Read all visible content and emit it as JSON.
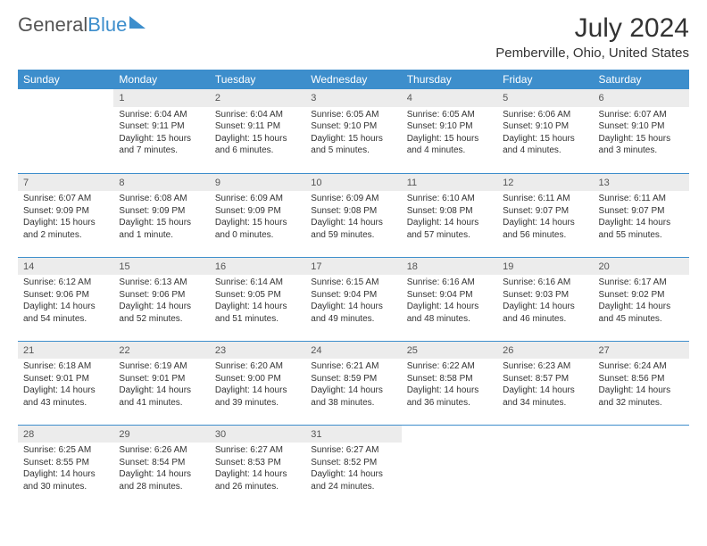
{
  "logo": {
    "text1": "General",
    "text2": "Blue"
  },
  "title": "July 2024",
  "subtitle": "Pemberville, Ohio, United States",
  "colors": {
    "header_bg": "#3d8ecc",
    "header_text": "#ffffff",
    "daynum_bg": "#ececec",
    "daynum_text": "#555555",
    "row_divider": "#3d8ecc",
    "body_text": "#333333",
    "background": "#ffffff"
  },
  "weekdays": [
    "Sunday",
    "Monday",
    "Tuesday",
    "Wednesday",
    "Thursday",
    "Friday",
    "Saturday"
  ],
  "weeks": [
    [
      null,
      {
        "n": "1",
        "sr": "Sunrise: 6:04 AM",
        "ss": "Sunset: 9:11 PM",
        "dl": "Daylight: 15 hours and 7 minutes."
      },
      {
        "n": "2",
        "sr": "Sunrise: 6:04 AM",
        "ss": "Sunset: 9:11 PM",
        "dl": "Daylight: 15 hours and 6 minutes."
      },
      {
        "n": "3",
        "sr": "Sunrise: 6:05 AM",
        "ss": "Sunset: 9:10 PM",
        "dl": "Daylight: 15 hours and 5 minutes."
      },
      {
        "n": "4",
        "sr": "Sunrise: 6:05 AM",
        "ss": "Sunset: 9:10 PM",
        "dl": "Daylight: 15 hours and 4 minutes."
      },
      {
        "n": "5",
        "sr": "Sunrise: 6:06 AM",
        "ss": "Sunset: 9:10 PM",
        "dl": "Daylight: 15 hours and 4 minutes."
      },
      {
        "n": "6",
        "sr": "Sunrise: 6:07 AM",
        "ss": "Sunset: 9:10 PM",
        "dl": "Daylight: 15 hours and 3 minutes."
      }
    ],
    [
      {
        "n": "7",
        "sr": "Sunrise: 6:07 AM",
        "ss": "Sunset: 9:09 PM",
        "dl": "Daylight: 15 hours and 2 minutes."
      },
      {
        "n": "8",
        "sr": "Sunrise: 6:08 AM",
        "ss": "Sunset: 9:09 PM",
        "dl": "Daylight: 15 hours and 1 minute."
      },
      {
        "n": "9",
        "sr": "Sunrise: 6:09 AM",
        "ss": "Sunset: 9:09 PM",
        "dl": "Daylight: 15 hours and 0 minutes."
      },
      {
        "n": "10",
        "sr": "Sunrise: 6:09 AM",
        "ss": "Sunset: 9:08 PM",
        "dl": "Daylight: 14 hours and 59 minutes."
      },
      {
        "n": "11",
        "sr": "Sunrise: 6:10 AM",
        "ss": "Sunset: 9:08 PM",
        "dl": "Daylight: 14 hours and 57 minutes."
      },
      {
        "n": "12",
        "sr": "Sunrise: 6:11 AM",
        "ss": "Sunset: 9:07 PM",
        "dl": "Daylight: 14 hours and 56 minutes."
      },
      {
        "n": "13",
        "sr": "Sunrise: 6:11 AM",
        "ss": "Sunset: 9:07 PM",
        "dl": "Daylight: 14 hours and 55 minutes."
      }
    ],
    [
      {
        "n": "14",
        "sr": "Sunrise: 6:12 AM",
        "ss": "Sunset: 9:06 PM",
        "dl": "Daylight: 14 hours and 54 minutes."
      },
      {
        "n": "15",
        "sr": "Sunrise: 6:13 AM",
        "ss": "Sunset: 9:06 PM",
        "dl": "Daylight: 14 hours and 52 minutes."
      },
      {
        "n": "16",
        "sr": "Sunrise: 6:14 AM",
        "ss": "Sunset: 9:05 PM",
        "dl": "Daylight: 14 hours and 51 minutes."
      },
      {
        "n": "17",
        "sr": "Sunrise: 6:15 AM",
        "ss": "Sunset: 9:04 PM",
        "dl": "Daylight: 14 hours and 49 minutes."
      },
      {
        "n": "18",
        "sr": "Sunrise: 6:16 AM",
        "ss": "Sunset: 9:04 PM",
        "dl": "Daylight: 14 hours and 48 minutes."
      },
      {
        "n": "19",
        "sr": "Sunrise: 6:16 AM",
        "ss": "Sunset: 9:03 PM",
        "dl": "Daylight: 14 hours and 46 minutes."
      },
      {
        "n": "20",
        "sr": "Sunrise: 6:17 AM",
        "ss": "Sunset: 9:02 PM",
        "dl": "Daylight: 14 hours and 45 minutes."
      }
    ],
    [
      {
        "n": "21",
        "sr": "Sunrise: 6:18 AM",
        "ss": "Sunset: 9:01 PM",
        "dl": "Daylight: 14 hours and 43 minutes."
      },
      {
        "n": "22",
        "sr": "Sunrise: 6:19 AM",
        "ss": "Sunset: 9:01 PM",
        "dl": "Daylight: 14 hours and 41 minutes."
      },
      {
        "n": "23",
        "sr": "Sunrise: 6:20 AM",
        "ss": "Sunset: 9:00 PM",
        "dl": "Daylight: 14 hours and 39 minutes."
      },
      {
        "n": "24",
        "sr": "Sunrise: 6:21 AM",
        "ss": "Sunset: 8:59 PM",
        "dl": "Daylight: 14 hours and 38 minutes."
      },
      {
        "n": "25",
        "sr": "Sunrise: 6:22 AM",
        "ss": "Sunset: 8:58 PM",
        "dl": "Daylight: 14 hours and 36 minutes."
      },
      {
        "n": "26",
        "sr": "Sunrise: 6:23 AM",
        "ss": "Sunset: 8:57 PM",
        "dl": "Daylight: 14 hours and 34 minutes."
      },
      {
        "n": "27",
        "sr": "Sunrise: 6:24 AM",
        "ss": "Sunset: 8:56 PM",
        "dl": "Daylight: 14 hours and 32 minutes."
      }
    ],
    [
      {
        "n": "28",
        "sr": "Sunrise: 6:25 AM",
        "ss": "Sunset: 8:55 PM",
        "dl": "Daylight: 14 hours and 30 minutes."
      },
      {
        "n": "29",
        "sr": "Sunrise: 6:26 AM",
        "ss": "Sunset: 8:54 PM",
        "dl": "Daylight: 14 hours and 28 minutes."
      },
      {
        "n": "30",
        "sr": "Sunrise: 6:27 AM",
        "ss": "Sunset: 8:53 PM",
        "dl": "Daylight: 14 hours and 26 minutes."
      },
      {
        "n": "31",
        "sr": "Sunrise: 6:27 AM",
        "ss": "Sunset: 8:52 PM",
        "dl": "Daylight: 14 hours and 24 minutes."
      },
      null,
      null,
      null
    ]
  ]
}
